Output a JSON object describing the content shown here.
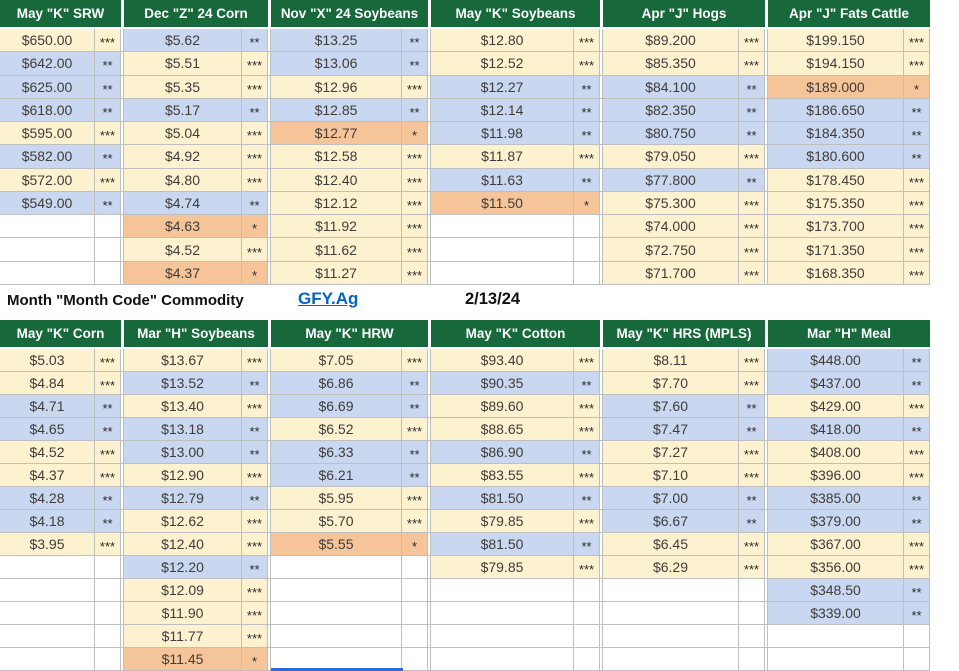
{
  "meta": {
    "note_label": "Month \"Month Code\" Commodity",
    "link_label": "GFY.Ag",
    "date": "2/13/24"
  },
  "colors": {
    "header_bg": "#17683B",
    "cream": "#FDF2CF",
    "blue": "#C9D7F0",
    "orange": "#F5C499",
    "gridline": "#BFBFBF",
    "link_blue": "#0563C1",
    "selection_blue": "#2E6BD8"
  },
  "legend_meaning": {
    "cream": "three-star level",
    "blue": "two-star level",
    "orange": "one-star level"
  },
  "top_table": {
    "row_count": 11,
    "columns": [
      {
        "header": "May \"K\" SRW",
        "cells": [
          {
            "value": "$650.00",
            "stars": "***",
            "color": "cream"
          },
          {
            "value": "$642.00",
            "stars": "**",
            "color": "blue"
          },
          {
            "value": "$625.00",
            "stars": "**",
            "color": "blue"
          },
          {
            "value": "$618.00",
            "stars": "**",
            "color": "blue"
          },
          {
            "value": "$595.00",
            "stars": "***",
            "color": "cream"
          },
          {
            "value": "$582.00",
            "stars": "**",
            "color": "blue"
          },
          {
            "value": "$572.00",
            "stars": "***",
            "color": "cream"
          },
          {
            "value": "$549.00",
            "stars": "**",
            "color": "blue"
          },
          null,
          null,
          null
        ]
      },
      {
        "header": "Dec \"Z\" 24 Corn",
        "cells": [
          {
            "value": "$5.62",
            "stars": "**",
            "color": "blue"
          },
          {
            "value": "$5.51",
            "stars": "***",
            "color": "cream"
          },
          {
            "value": "$5.35",
            "stars": "***",
            "color": "cream"
          },
          {
            "value": "$5.17",
            "stars": "**",
            "color": "blue"
          },
          {
            "value": "$5.04",
            "stars": "***",
            "color": "cream"
          },
          {
            "value": "$4.92",
            "stars": "***",
            "color": "cream"
          },
          {
            "value": "$4.80",
            "stars": "***",
            "color": "cream"
          },
          {
            "value": "$4.74",
            "stars": "**",
            "color": "blue"
          },
          {
            "value": "$4.63",
            "stars": "*",
            "color": "orange"
          },
          {
            "value": "$4.52",
            "stars": "***",
            "color": "cream"
          },
          {
            "value": "$4.37",
            "stars": "*",
            "color": "orange"
          }
        ]
      },
      {
        "header": "Nov \"X\" 24 Soybeans",
        "cells": [
          {
            "value": "$13.25",
            "stars": "**",
            "color": "blue"
          },
          {
            "value": "$13.06",
            "stars": "**",
            "color": "blue"
          },
          {
            "value": "$12.96",
            "stars": "***",
            "color": "cream"
          },
          {
            "value": "$12.85",
            "stars": "**",
            "color": "blue"
          },
          {
            "value": "$12.77",
            "stars": "*",
            "color": "orange"
          },
          {
            "value": "$12.58",
            "stars": "***",
            "color": "cream"
          },
          {
            "value": "$12.40",
            "stars": "***",
            "color": "cream"
          },
          {
            "value": "$12.12",
            "stars": "***",
            "color": "cream"
          },
          {
            "value": "$11.92",
            "stars": "***",
            "color": "cream"
          },
          {
            "value": "$11.62",
            "stars": "***",
            "color": "cream"
          },
          {
            "value": "$11.27",
            "stars": "***",
            "color": "cream"
          }
        ]
      },
      {
        "header": "May \"K\" Soybeans",
        "cells": [
          {
            "value": "$12.80",
            "stars": "***",
            "color": "cream"
          },
          {
            "value": "$12.52",
            "stars": "***",
            "color": "cream"
          },
          {
            "value": "$12.27",
            "stars": "**",
            "color": "blue"
          },
          {
            "value": "$12.14",
            "stars": "**",
            "color": "blue"
          },
          {
            "value": "$11.98",
            "stars": "**",
            "color": "blue"
          },
          {
            "value": "$11.87",
            "stars": "***",
            "color": "cream"
          },
          {
            "value": "$11.63",
            "stars": "**",
            "color": "blue"
          },
          {
            "value": "$11.50",
            "stars": "*",
            "color": "orange"
          },
          null,
          null,
          null
        ]
      },
      {
        "header": "Apr \"J\" Hogs",
        "cells": [
          {
            "value": "$89.200",
            "stars": "***",
            "color": "cream"
          },
          {
            "value": "$85.350",
            "stars": "***",
            "color": "cream"
          },
          {
            "value": "$84.100",
            "stars": "**",
            "color": "blue"
          },
          {
            "value": "$82.350",
            "stars": "**",
            "color": "blue"
          },
          {
            "value": "$80.750",
            "stars": "**",
            "color": "blue"
          },
          {
            "value": "$79.050",
            "stars": "***",
            "color": "cream"
          },
          {
            "value": "$77.800",
            "stars": "**",
            "color": "blue"
          },
          {
            "value": "$75.300",
            "stars": "***",
            "color": "cream"
          },
          {
            "value": "$74.000",
            "stars": "***",
            "color": "cream"
          },
          {
            "value": "$72.750",
            "stars": "***",
            "color": "cream"
          },
          {
            "value": "$71.700",
            "stars": "***",
            "color": "cream"
          }
        ]
      },
      {
        "header": "Apr \"J\" Fats Cattle",
        "cells": [
          {
            "value": "$199.150",
            "stars": "***",
            "color": "cream"
          },
          {
            "value": "$194.150",
            "stars": "***",
            "color": "cream"
          },
          {
            "value": "$189.000",
            "stars": "*",
            "color": "orange"
          },
          {
            "value": "$186.650",
            "stars": "**",
            "color": "blue"
          },
          {
            "value": "$184.350",
            "stars": "**",
            "color": "blue"
          },
          {
            "value": "$180.600",
            "stars": "**",
            "color": "blue"
          },
          {
            "value": "$178.450",
            "stars": "***",
            "color": "cream"
          },
          {
            "value": "$175.350",
            "stars": "***",
            "color": "cream"
          },
          {
            "value": "$173.700",
            "stars": "***",
            "color": "cream"
          },
          {
            "value": "$171.350",
            "stars": "***",
            "color": "cream"
          },
          {
            "value": "$168.350",
            "stars": "***",
            "color": "cream"
          }
        ]
      }
    ]
  },
  "bottom_table": {
    "row_count": 14,
    "columns": [
      {
        "header": "May \"K\" Corn",
        "cells": [
          {
            "value": "$5.03",
            "stars": "***",
            "color": "cream"
          },
          {
            "value": "$4.84",
            "stars": "***",
            "color": "cream"
          },
          {
            "value": "$4.71",
            "stars": "**",
            "color": "blue"
          },
          {
            "value": "$4.65",
            "stars": "**",
            "color": "blue"
          },
          {
            "value": "$4.52",
            "stars": "***",
            "color": "cream"
          },
          {
            "value": "$4.37",
            "stars": "***",
            "color": "cream"
          },
          {
            "value": "$4.28",
            "stars": "**",
            "color": "blue"
          },
          {
            "value": "$4.18",
            "stars": "**",
            "color": "blue"
          },
          {
            "value": "$3.95",
            "stars": "***",
            "color": "cream"
          },
          null,
          null,
          null,
          null,
          null
        ]
      },
      {
        "header": "Mar \"H\" Soybeans",
        "cells": [
          {
            "value": "$13.67",
            "stars": "***",
            "color": "cream"
          },
          {
            "value": "$13.52",
            "stars": "**",
            "color": "blue"
          },
          {
            "value": "$13.40",
            "stars": "***",
            "color": "cream"
          },
          {
            "value": "$13.18",
            "stars": "**",
            "color": "blue"
          },
          {
            "value": "$13.00",
            "stars": "**",
            "color": "blue"
          },
          {
            "value": "$12.90",
            "stars": "***",
            "color": "cream"
          },
          {
            "value": "$12.79",
            "stars": "**",
            "color": "blue"
          },
          {
            "value": "$12.62",
            "stars": "***",
            "color": "cream"
          },
          {
            "value": "$12.40",
            "stars": "***",
            "color": "cream"
          },
          {
            "value": "$12.20",
            "stars": "**",
            "color": "blue"
          },
          {
            "value": "$12.09",
            "stars": "***",
            "color": "cream"
          },
          {
            "value": "$11.90",
            "stars": "***",
            "color": "cream"
          },
          {
            "value": "$11.77",
            "stars": "***",
            "color": "cream"
          },
          {
            "value": "$11.45",
            "stars": "*",
            "color": "orange"
          }
        ]
      },
      {
        "header": "May \"K\" HRW",
        "cells": [
          {
            "value": "$7.05",
            "stars": "***",
            "color": "cream"
          },
          {
            "value": "$6.86",
            "stars": "**",
            "color": "blue"
          },
          {
            "value": "$6.69",
            "stars": "**",
            "color": "blue"
          },
          {
            "value": "$6.52",
            "stars": "***",
            "color": "cream"
          },
          {
            "value": "$6.33",
            "stars": "**",
            "color": "blue"
          },
          {
            "value": "$6.21",
            "stars": "**",
            "color": "blue"
          },
          {
            "value": "$5.95",
            "stars": "***",
            "color": "cream"
          },
          {
            "value": "$5.70",
            "stars": "***",
            "color": "cream"
          },
          {
            "value": "$5.55",
            "stars": "*",
            "color": "orange"
          },
          null,
          null,
          null,
          null,
          null
        ]
      },
      {
        "header": "May \"K\" Cotton",
        "cells": [
          {
            "value": "$93.40",
            "stars": "***",
            "color": "cream"
          },
          {
            "value": "$90.35",
            "stars": "**",
            "color": "blue"
          },
          {
            "value": "$89.60",
            "stars": "***",
            "color": "cream"
          },
          {
            "value": "$88.65",
            "stars": "***",
            "color": "cream"
          },
          {
            "value": "$86.90",
            "stars": "**",
            "color": "blue"
          },
          {
            "value": "$83.55",
            "stars": "***",
            "color": "cream"
          },
          {
            "value": "$81.50",
            "stars": "**",
            "color": "blue"
          },
          {
            "value": "$79.85",
            "stars": "***",
            "color": "cream"
          },
          {
            "value": "$81.50",
            "stars": "**",
            "color": "blue"
          },
          {
            "value": "$79.85",
            "stars": "***",
            "color": "cream"
          },
          null,
          null,
          null,
          null
        ]
      },
      {
        "header": "May \"K\" HRS (MPLS)",
        "cells": [
          {
            "value": "$8.11",
            "stars": "***",
            "color": "cream"
          },
          {
            "value": "$7.70",
            "stars": "***",
            "color": "cream"
          },
          {
            "value": "$7.60",
            "stars": "**",
            "color": "blue"
          },
          {
            "value": "$7.47",
            "stars": "**",
            "color": "blue"
          },
          {
            "value": "$7.27",
            "stars": "***",
            "color": "cream"
          },
          {
            "value": "$7.10",
            "stars": "***",
            "color": "cream"
          },
          {
            "value": "$7.00",
            "stars": "**",
            "color": "blue"
          },
          {
            "value": "$6.67",
            "stars": "**",
            "color": "blue"
          },
          {
            "value": "$6.45",
            "stars": "***",
            "color": "cream"
          },
          {
            "value": "$6.29",
            "stars": "***",
            "color": "cream"
          },
          null,
          null,
          null,
          null
        ]
      },
      {
        "header": "Mar \"H\" Meal",
        "cells": [
          {
            "value": "$448.00",
            "stars": "**",
            "color": "blue"
          },
          {
            "value": "$437.00",
            "stars": "**",
            "color": "blue"
          },
          {
            "value": "$429.00",
            "stars": "***",
            "color": "cream"
          },
          {
            "value": "$418.00",
            "stars": "**",
            "color": "blue"
          },
          {
            "value": "$408.00",
            "stars": "***",
            "color": "cream"
          },
          {
            "value": "$396.00",
            "stars": "***",
            "color": "cream"
          },
          {
            "value": "$385.00",
            "stars": "**",
            "color": "blue"
          },
          {
            "value": "$379.00",
            "stars": "**",
            "color": "blue"
          },
          {
            "value": "$367.00",
            "stars": "***",
            "color": "cream"
          },
          {
            "value": "$356.00",
            "stars": "***",
            "color": "cream"
          },
          {
            "value": "$348.50",
            "stars": "**",
            "color": "blue"
          },
          {
            "value": "$339.00",
            "stars": "**",
            "color": "blue"
          },
          null,
          null
        ]
      }
    ]
  }
}
